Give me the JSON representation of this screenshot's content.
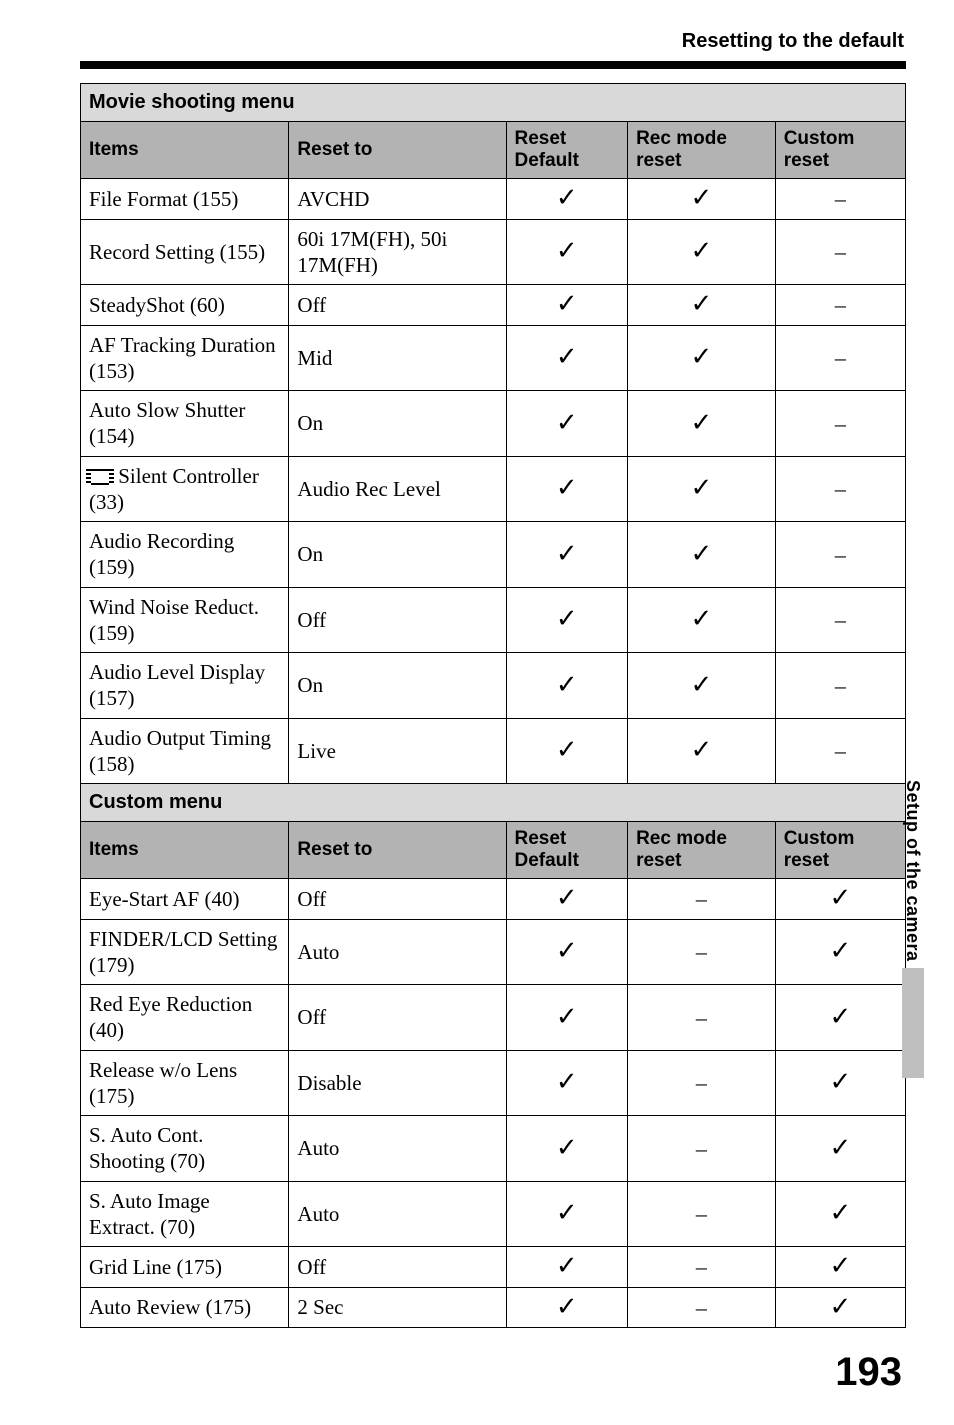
{
  "header": {
    "section_title": "Resetting to the default"
  },
  "sidebar": {
    "label": "Setup of the camera"
  },
  "page_number": "193",
  "symbols": {
    "check": "✓",
    "dash": "–"
  },
  "tables": {
    "movie": {
      "section_label": "Movie shooting menu",
      "columns": {
        "items": "Items",
        "reset_to": "Reset to",
        "reset_default": "Reset Default",
        "rec_mode": "Rec mode reset",
        "custom": "Custom reset"
      },
      "rows": [
        {
          "item": "File Format (155)",
          "reset_to": "AVCHD",
          "rd": "check",
          "rm": "check",
          "cu": "dash",
          "icon": null
        },
        {
          "item": "Record Setting (155)",
          "reset_to": "60i 17M(FH), 50i 17M(FH)",
          "rd": "check",
          "rm": "check",
          "cu": "dash",
          "icon": null
        },
        {
          "item": "SteadyShot (60)",
          "reset_to": "Off",
          "rd": "check",
          "rm": "check",
          "cu": "dash",
          "icon": null
        },
        {
          "item": "AF Tracking Duration (153)",
          "reset_to": "Mid",
          "rd": "check",
          "rm": "check",
          "cu": "dash",
          "icon": null
        },
        {
          "item": "Auto Slow Shutter (154)",
          "reset_to": "On",
          "rd": "check",
          "rm": "check",
          "cu": "dash",
          "icon": null
        },
        {
          "item": "Silent Controller (33)",
          "reset_to": "Audio Rec Level",
          "rd": "check",
          "rm": "check",
          "cu": "dash",
          "icon": "movie"
        },
        {
          "item": "Audio Recording (159)",
          "reset_to": "On",
          "rd": "check",
          "rm": "check",
          "cu": "dash",
          "icon": null
        },
        {
          "item": "Wind Noise Reduct. (159)",
          "reset_to": "Off",
          "rd": "check",
          "rm": "check",
          "cu": "dash",
          "icon": null
        },
        {
          "item": "Audio Level Display (157)",
          "reset_to": "On",
          "rd": "check",
          "rm": "check",
          "cu": "dash",
          "icon": null
        },
        {
          "item": "Audio Output Timing (158)",
          "reset_to": "Live",
          "rd": "check",
          "rm": "check",
          "cu": "dash",
          "icon": null
        }
      ]
    },
    "custom": {
      "section_label": "Custom menu",
      "columns": {
        "items": "Items",
        "reset_to": "Reset to",
        "reset_default": "Reset Default",
        "rec_mode": "Rec mode reset",
        "custom": "Custom reset"
      },
      "rows": [
        {
          "item": "Eye-Start AF (40)",
          "reset_to": "Off",
          "rd": "check",
          "rm": "dash",
          "cu": "check"
        },
        {
          "item": "FINDER/LCD Setting (179)",
          "reset_to": "Auto",
          "rd": "check",
          "rm": "dash",
          "cu": "check"
        },
        {
          "item": "Red Eye Reduction (40)",
          "reset_to": "Off",
          "rd": "check",
          "rm": "dash",
          "cu": "check"
        },
        {
          "item": "Release w/o Lens (175)",
          "reset_to": "Disable",
          "rd": "check",
          "rm": "dash",
          "cu": "check"
        },
        {
          "item": "S. Auto Cont. Shooting (70)",
          "reset_to": "Auto",
          "rd": "check",
          "rm": "dash",
          "cu": "check"
        },
        {
          "item": "S. Auto Image Extract. (70)",
          "reset_to": "Auto",
          "rd": "check",
          "rm": "dash",
          "cu": "check"
        },
        {
          "item": "Grid Line (175)",
          "reset_to": "Off",
          "rd": "check",
          "rm": "dash",
          "cu": "check"
        },
        {
          "item": "Auto Review (175)",
          "reset_to": "2 Sec",
          "rd": "check",
          "rm": "dash",
          "cu": "check"
        }
      ]
    }
  }
}
